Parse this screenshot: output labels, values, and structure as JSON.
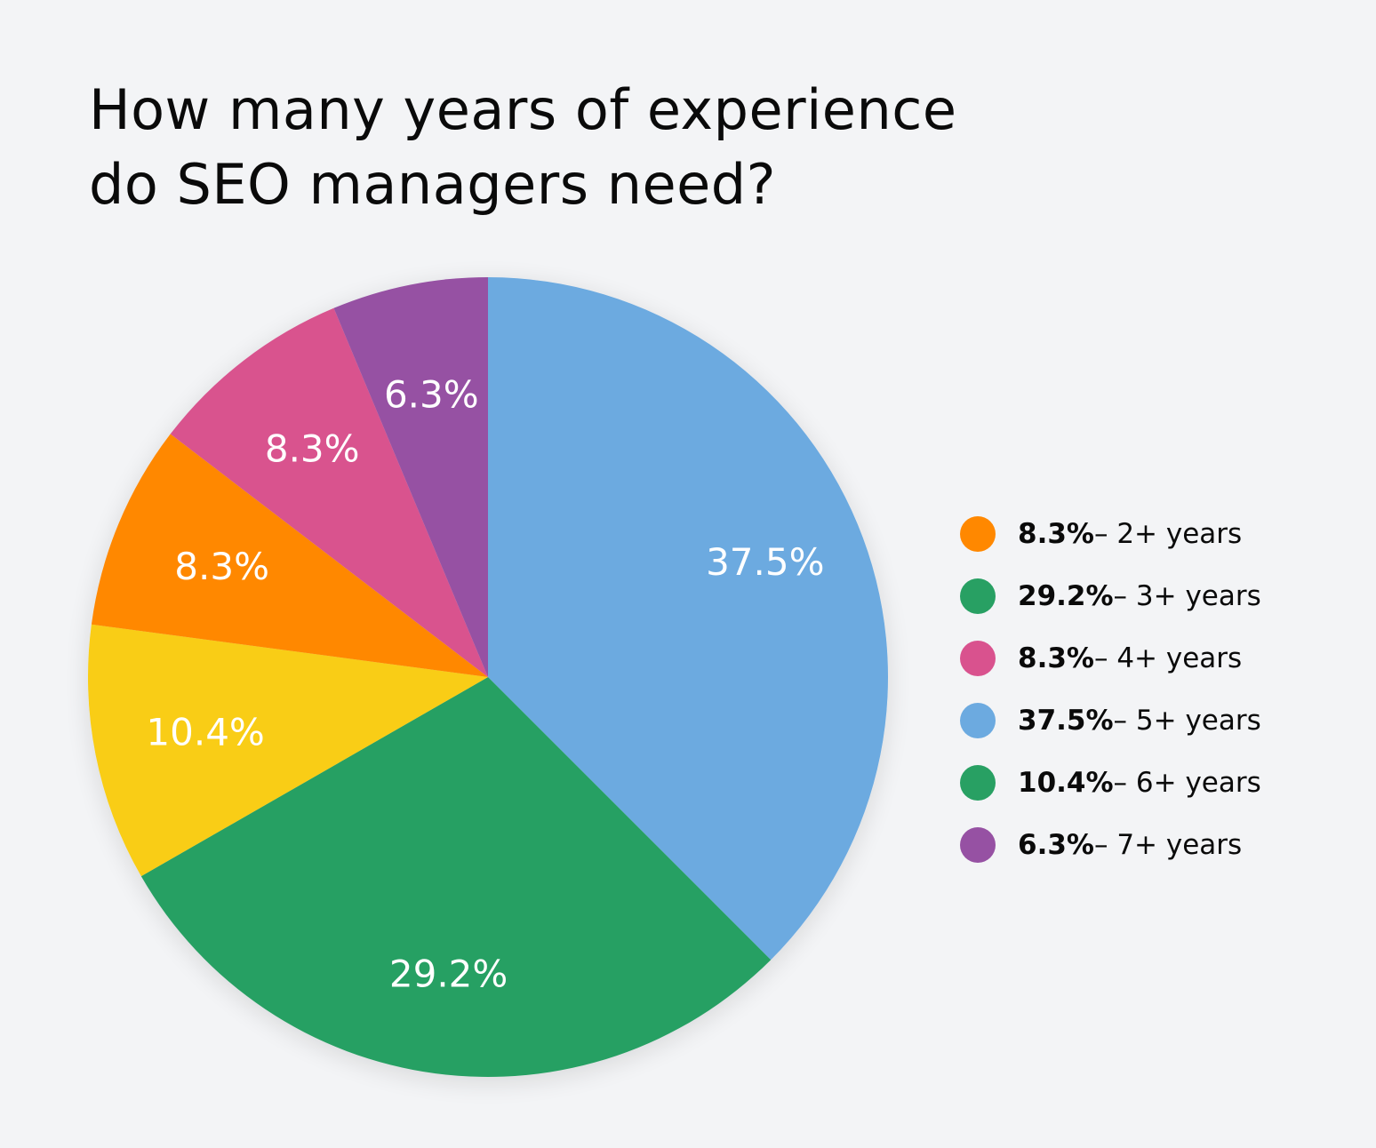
{
  "chart_data": {
    "type": "pie",
    "title_lines": [
      "How many years of experience",
      "do SEO managers need?"
    ],
    "slices": [
      {
        "label": "5+ years",
        "value": 37.5,
        "value_label": "37.5%",
        "color": "#6caae0"
      },
      {
        "label": "3+ years",
        "value": 29.2,
        "value_label": "29.2%",
        "color": "#28a063"
      },
      {
        "label": "6+ years",
        "value": 10.4,
        "value_label": "10.4%",
        "color": "#f9cd12"
      },
      {
        "label": "2+ years",
        "value": 8.3,
        "value_label": "8.3%",
        "color": "#ff8800"
      },
      {
        "label": "4+ years",
        "value": 8.3,
        "value_label": "8.3%",
        "color": "#d9528e"
      },
      {
        "label": "7+ years",
        "value": 6.3,
        "value_label": "6.3%",
        "color": "#9651a3"
      }
    ],
    "legend_placement": "right",
    "legend": [
      {
        "pct": "8.3%",
        "text": " – 2+ years",
        "color": "#ff8800"
      },
      {
        "pct": "29.2%",
        "text": " – 3+ years",
        "color": "#28a063"
      },
      {
        "pct": "8.3%",
        "text": " – 4+ years",
        "color": "#d9528e"
      },
      {
        "pct": "37.5%",
        "text": " – 5+ years",
        "color": "#6caae0"
      },
      {
        "pct": "10.4%",
        "text": " – 6+ years",
        "color": "#28a063"
      },
      {
        "pct": "6.3%",
        "text": " – 7+ years",
        "color": "#9651a3"
      }
    ]
  }
}
